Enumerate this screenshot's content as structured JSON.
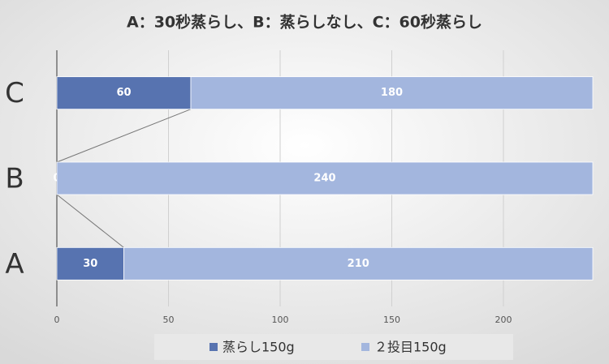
{
  "chart_data": {
    "type": "stacked-bar-horizontal",
    "title": "A：30秒蒸らし、B：蒸らしなし、C：60秒蒸らし",
    "categories": [
      "A",
      "B",
      "C"
    ],
    "series": [
      {
        "name": "蒸らし150g",
        "color": "#5773b0",
        "values": [
          30,
          0,
          60
        ]
      },
      {
        "name": "２投目150g",
        "color": "#a3b6de",
        "values": [
          210,
          240,
          180
        ]
      }
    ],
    "xlim": [
      0,
      240
    ],
    "xticks": [
      0,
      50,
      100,
      150,
      200
    ],
    "grid": true
  }
}
